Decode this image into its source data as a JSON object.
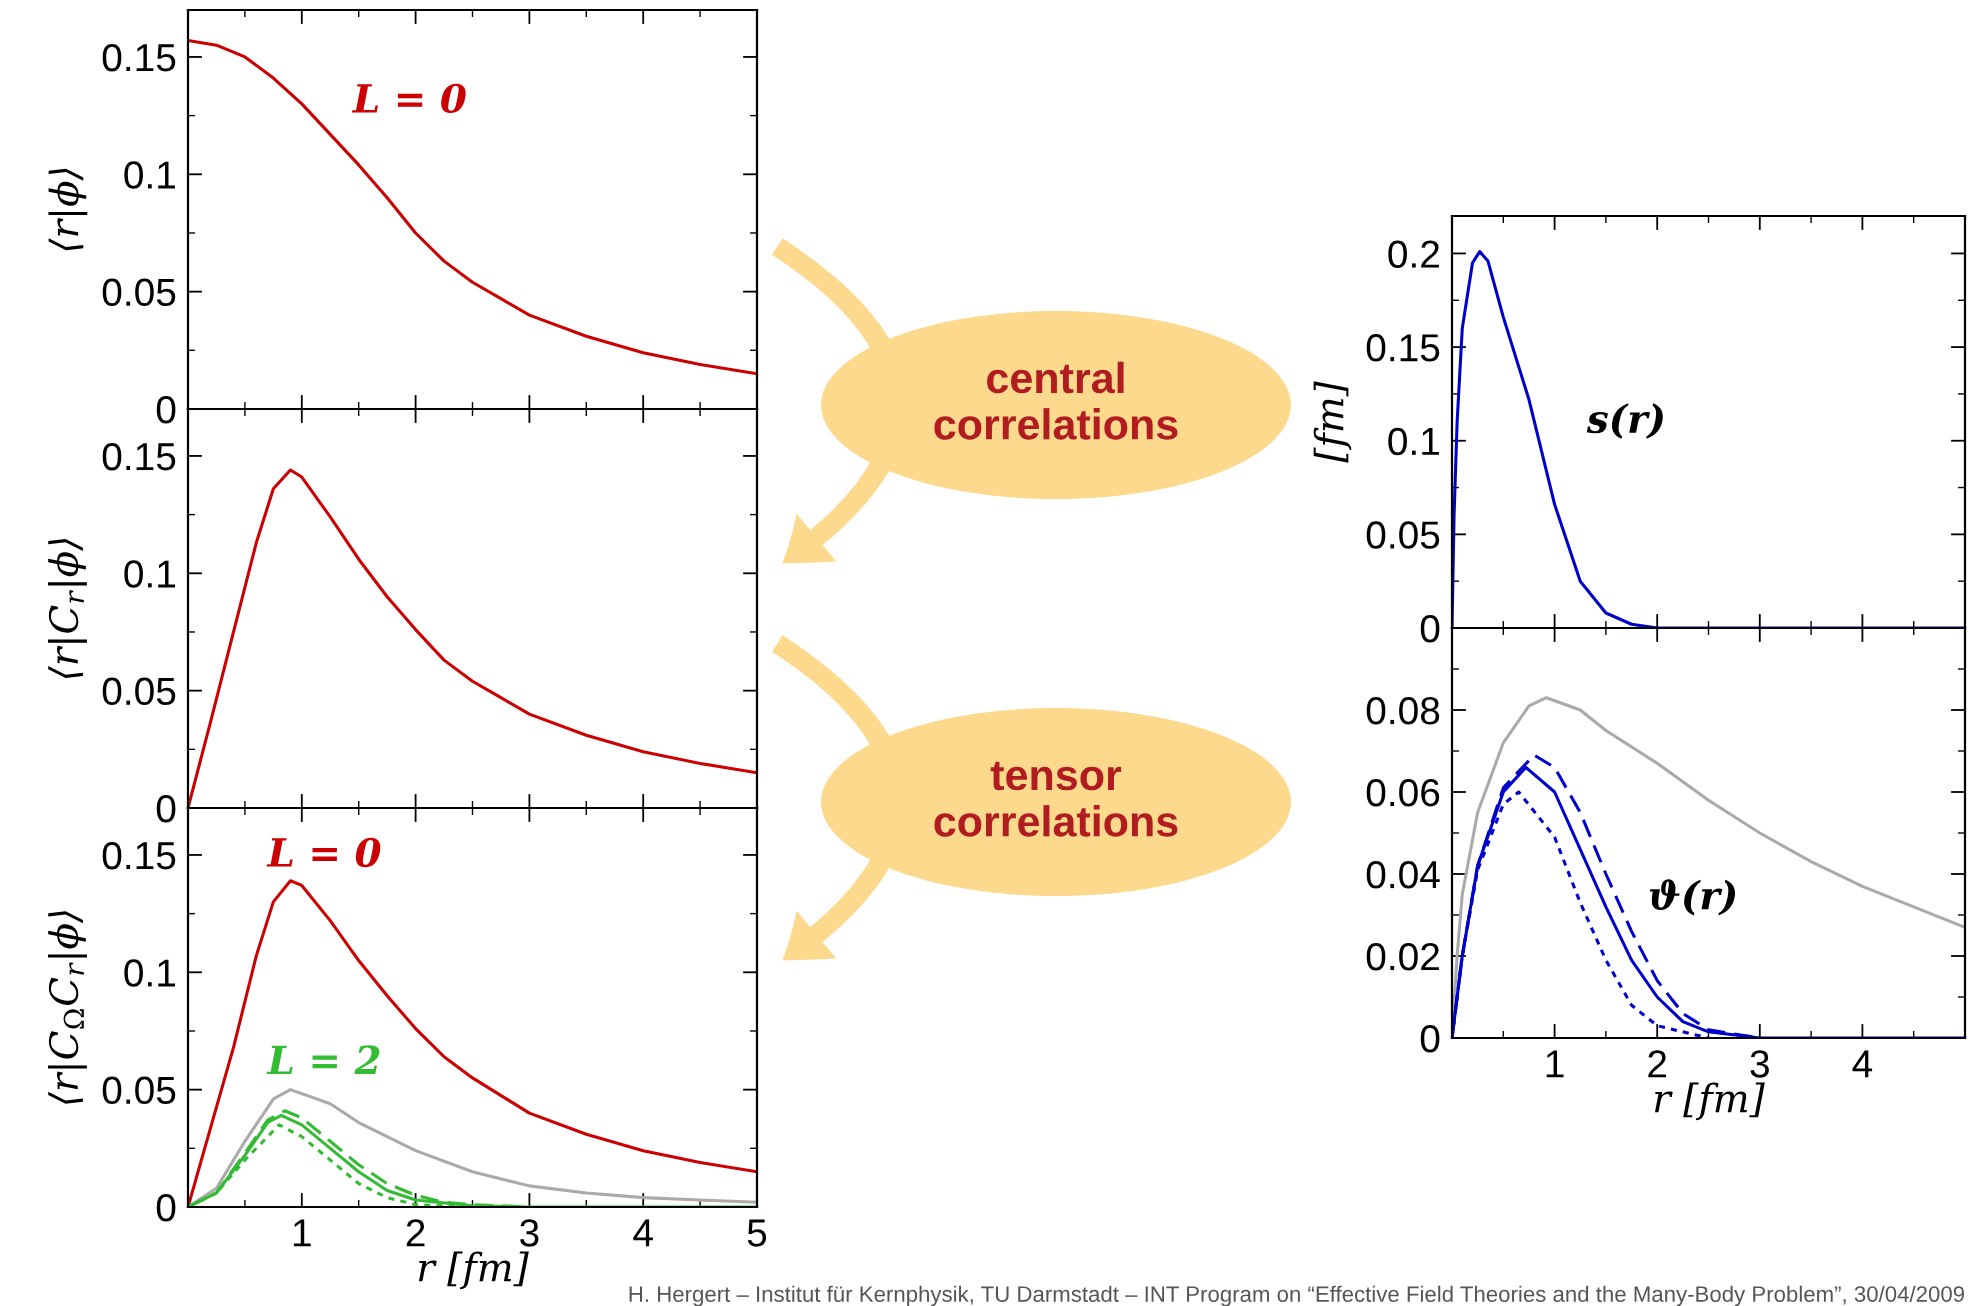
{
  "chart_data": [
    {
      "type": "line",
      "ylabel": "⟨r|ϕ⟩",
      "xlim": [
        0,
        5
      ],
      "ylim": [
        0,
        0.17
      ],
      "xticks": [
        1,
        2,
        3,
        4,
        5
      ],
      "yticks": [
        0,
        0.05,
        0.1,
        0.15
      ],
      "tick_labels": "y",
      "annotations": [
        "L = 0"
      ],
      "series": [
        {
          "color": "#cc0000",
          "x": [
            0,
            0.25,
            0.5,
            0.75,
            1.0,
            1.25,
            1.5,
            1.75,
            2.0,
            2.25,
            2.5,
            2.75,
            3.0,
            3.5,
            4.0,
            4.5,
            5.0
          ],
          "values": [
            0.157,
            0.155,
            0.15,
            0.141,
            0.13,
            0.117,
            0.104,
            0.09,
            0.075,
            0.063,
            0.054,
            0.047,
            0.04,
            0.031,
            0.024,
            0.019,
            0.015
          ]
        }
      ]
    },
    {
      "type": "line",
      "ylabel": "⟨r|C$_{r}$|ϕ⟩",
      "xlim": [
        0,
        5
      ],
      "ylim": [
        0,
        0.17
      ],
      "xticks": [
        1,
        2,
        3,
        4,
        5
      ],
      "yticks": [
        0,
        0.05,
        0.1,
        0.15
      ],
      "tick_labels": "y",
      "series": [
        {
          "color": "#cc0000",
          "x": [
            0,
            0.2,
            0.4,
            0.6,
            0.75,
            0.9,
            1.0,
            1.25,
            1.5,
            1.75,
            2.0,
            2.25,
            2.5,
            2.75,
            3.0,
            3.5,
            4.0,
            4.5,
            5.0
          ],
          "values": [
            0,
            0.037,
            0.075,
            0.113,
            0.136,
            0.144,
            0.141,
            0.124,
            0.106,
            0.09,
            0.076,
            0.063,
            0.054,
            0.047,
            0.04,
            0.031,
            0.024,
            0.019,
            0.015
          ]
        }
      ]
    },
    {
      "type": "line",
      "ylabel": "⟨r|C$_{Ω}$C$_{r}$|ϕ⟩",
      "xlabel": "r [fm]",
      "xlim": [
        0,
        5
      ],
      "ylim": [
        0,
        0.17
      ],
      "xticks": [
        1,
        2,
        3,
        4,
        5
      ],
      "yticks": [
        0,
        0.05,
        0.1,
        0.15
      ],
      "annotations": [
        "L = 0",
        "L = 2"
      ],
      "series": [
        {
          "color": "#cc0000",
          "x": [
            0,
            0.2,
            0.4,
            0.6,
            0.75,
            0.9,
            1.0,
            1.25,
            1.5,
            1.75,
            2.0,
            2.25,
            2.5,
            3.0,
            3.5,
            4.0,
            4.5,
            5.0
          ],
          "values": [
            0,
            0.034,
            0.068,
            0.107,
            0.13,
            0.139,
            0.137,
            0.122,
            0.105,
            0.09,
            0.076,
            0.064,
            0.055,
            0.04,
            0.031,
            0.024,
            0.019,
            0.015
          ]
        },
        {
          "color": "#aaaaaa",
          "x": [
            0,
            0.25,
            0.5,
            0.75,
            0.9,
            1.25,
            1.5,
            2.0,
            2.5,
            3.0,
            3.5,
            4.0,
            4.5,
            5.0
          ],
          "values": [
            0,
            0.008,
            0.028,
            0.046,
            0.05,
            0.044,
            0.036,
            0.024,
            0.015,
            0.009,
            0.006,
            0.004,
            0.003,
            0.002
          ]
        },
        {
          "color": "#33bb33",
          "line_style": "solid",
          "x": [
            0,
            0.25,
            0.5,
            0.7,
            0.82,
            1.0,
            1.25,
            1.5,
            1.75,
            2.0,
            2.5,
            3.0,
            5.0
          ],
          "values": [
            0,
            0.006,
            0.022,
            0.036,
            0.039,
            0.035,
            0.025,
            0.015,
            0.007,
            0.003,
            0.0005,
            0,
            0
          ]
        },
        {
          "color": "#33bb33",
          "line_style": "dashed",
          "x": [
            0,
            0.25,
            0.5,
            0.7,
            0.85,
            1.0,
            1.25,
            1.5,
            1.75,
            2.0,
            2.25,
            2.5,
            3.0
          ],
          "values": [
            0,
            0.006,
            0.023,
            0.037,
            0.041,
            0.038,
            0.028,
            0.018,
            0.01,
            0.005,
            0.002,
            0.001,
            0
          ]
        },
        {
          "color": "#33bb33",
          "line_style": "dotted",
          "x": [
            0,
            0.25,
            0.5,
            0.8,
            1.0,
            1.25,
            1.5,
            1.75,
            2.0,
            2.5
          ],
          "values": [
            0,
            0.006,
            0.02,
            0.035,
            0.03,
            0.02,
            0.01,
            0.004,
            0.001,
            0
          ]
        }
      ]
    },
    {
      "type": "other",
      "annotations": [
        "central\ncorrelations",
        "tensor\ncorrelations",
        "H. Hergert – Institut für Kernphysik, TU Darmstadt – INT Program on “Effective Field Theories and the Many-Body Problem”, 30/04/2009"
      ]
    },
    {
      "type": "line",
      "ylabel": "[fm]",
      "xlim": [
        0,
        5
      ],
      "ylim": [
        0,
        0.22
      ],
      "xticks": [
        1,
        2,
        3,
        4
      ],
      "yticks": [
        0,
        0.05,
        0.1,
        0.15,
        0.2
      ],
      "tick_labels": "y",
      "annotations": [
        "s(r)"
      ],
      "series": [
        {
          "color": "#0000cc",
          "x": [
            0,
            0.02,
            0.05,
            0.1,
            0.2,
            0.27,
            0.35,
            0.5,
            0.75,
            1.0,
            1.25,
            1.5,
            1.75,
            2.0,
            5.0
          ],
          "values": [
            0,
            0.06,
            0.11,
            0.16,
            0.195,
            0.201,
            0.196,
            0.166,
            0.122,
            0.066,
            0.025,
            0.008,
            0.002,
            0,
            0
          ]
        }
      ]
    },
    {
      "type": "line",
      "xlabel": "r [fm]",
      "xlim": [
        0,
        5
      ],
      "ylim": [
        0,
        0.1
      ],
      "xticks": [
        1,
        2,
        3,
        4
      ],
      "yticks": [
        0,
        0.02,
        0.04,
        0.06,
        0.08
      ],
      "annotations": [
        "ϑ(r)"
      ],
      "series": [
        {
          "color": "#aaaaaa",
          "x": [
            0,
            0.05,
            0.1,
            0.25,
            0.5,
            0.75,
            0.92,
            1.25,
            1.5,
            2.0,
            2.5,
            3.0,
            3.5,
            4.0,
            4.5,
            5.0
          ],
          "values": [
            0,
            0.02,
            0.035,
            0.055,
            0.072,
            0.081,
            0.083,
            0.08,
            0.075,
            0.067,
            0.058,
            0.05,
            0.043,
            0.037,
            0.032,
            0.027
          ]
        },
        {
          "color": "#0000cc",
          "line_style": "solid",
          "x": [
            0,
            0.1,
            0.25,
            0.5,
            0.72,
            1.0,
            1.25,
            1.5,
            1.75,
            2.0,
            2.25,
            2.5,
            3.0,
            5.0
          ],
          "values": [
            0,
            0.02,
            0.042,
            0.06,
            0.066,
            0.06,
            0.046,
            0.032,
            0.019,
            0.01,
            0.004,
            0.0015,
            0,
            0
          ]
        },
        {
          "color": "#0000cc",
          "line_style": "dashed",
          "x": [
            0,
            0.1,
            0.25,
            0.5,
            0.8,
            1.0,
            1.25,
            1.5,
            1.75,
            2.0,
            2.25,
            2.5,
            3.0
          ],
          "values": [
            0,
            0.02,
            0.042,
            0.061,
            0.069,
            0.066,
            0.055,
            0.04,
            0.026,
            0.014,
            0.006,
            0.002,
            0
          ]
        },
        {
          "color": "#0000cc",
          "line_style": "dotted",
          "x": [
            0,
            0.1,
            0.25,
            0.5,
            0.65,
            1.0,
            1.25,
            1.5,
            1.75,
            2.0,
            2.5
          ],
          "values": [
            0,
            0.02,
            0.041,
            0.057,
            0.06,
            0.049,
            0.033,
            0.019,
            0.008,
            0.003,
            0
          ]
        }
      ]
    }
  ]
}
